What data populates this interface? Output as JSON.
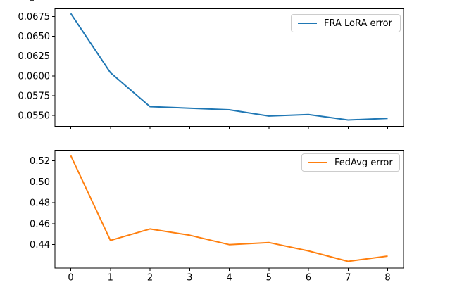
{
  "chart_data": [
    {
      "type": "line",
      "panel": "top",
      "x": [
        0,
        1,
        2,
        3,
        4,
        5,
        6,
        7,
        8
      ],
      "series": [
        {
          "name": "FRA LoRA error",
          "color": "#1f77b4",
          "values": [
            0.0679,
            0.0604,
            0.0561,
            0.0559,
            0.0557,
            0.0549,
            0.0551,
            0.0544,
            0.0546
          ]
        }
      ],
      "xlim": [
        -0.4,
        8.4
      ],
      "ylim": [
        0.0536,
        0.0685
      ],
      "yticks": [
        0.055,
        0.0575,
        0.06,
        0.0625,
        0.065,
        0.0675
      ],
      "ytick_labels": [
        "0.0550",
        "0.0575",
        "0.0600",
        "0.0625",
        "0.0650",
        "0.0675"
      ],
      "xticks": [
        0,
        1,
        2,
        3,
        4,
        5,
        6,
        7,
        8
      ],
      "xtick_labels": [],
      "grid": false,
      "legend": {
        "label": "FRA LoRA error",
        "position": "upper-right"
      }
    },
    {
      "type": "line",
      "panel": "bottom",
      "x": [
        0,
        1,
        2,
        3,
        4,
        5,
        6,
        7,
        8
      ],
      "series": [
        {
          "name": "FedAvg error",
          "color": "#ff7f0e",
          "values": [
            0.525,
            0.444,
            0.455,
            0.449,
            0.44,
            0.442,
            0.434,
            0.424,
            0.429
          ]
        }
      ],
      "xlim": [
        -0.4,
        8.4
      ],
      "ylim": [
        0.4176,
        0.5302
      ],
      "yticks": [
        0.44,
        0.46,
        0.48,
        0.5,
        0.52
      ],
      "ytick_labels": [
        "0.44",
        "0.46",
        "0.48",
        "0.50",
        "0.52"
      ],
      "xticks": [
        0,
        1,
        2,
        3,
        4,
        5,
        6,
        7,
        8
      ],
      "xtick_labels": [
        "0",
        "1",
        "2",
        "3",
        "4",
        "5",
        "6",
        "7",
        "8"
      ],
      "grid": false,
      "legend": {
        "label": "FedAvg error",
        "position": "upper-right"
      }
    }
  ],
  "colors": {
    "axes": "#000000",
    "legend_border": "#cccccc",
    "series_blue": "#1f77b4",
    "series_orange": "#ff7f0e"
  }
}
